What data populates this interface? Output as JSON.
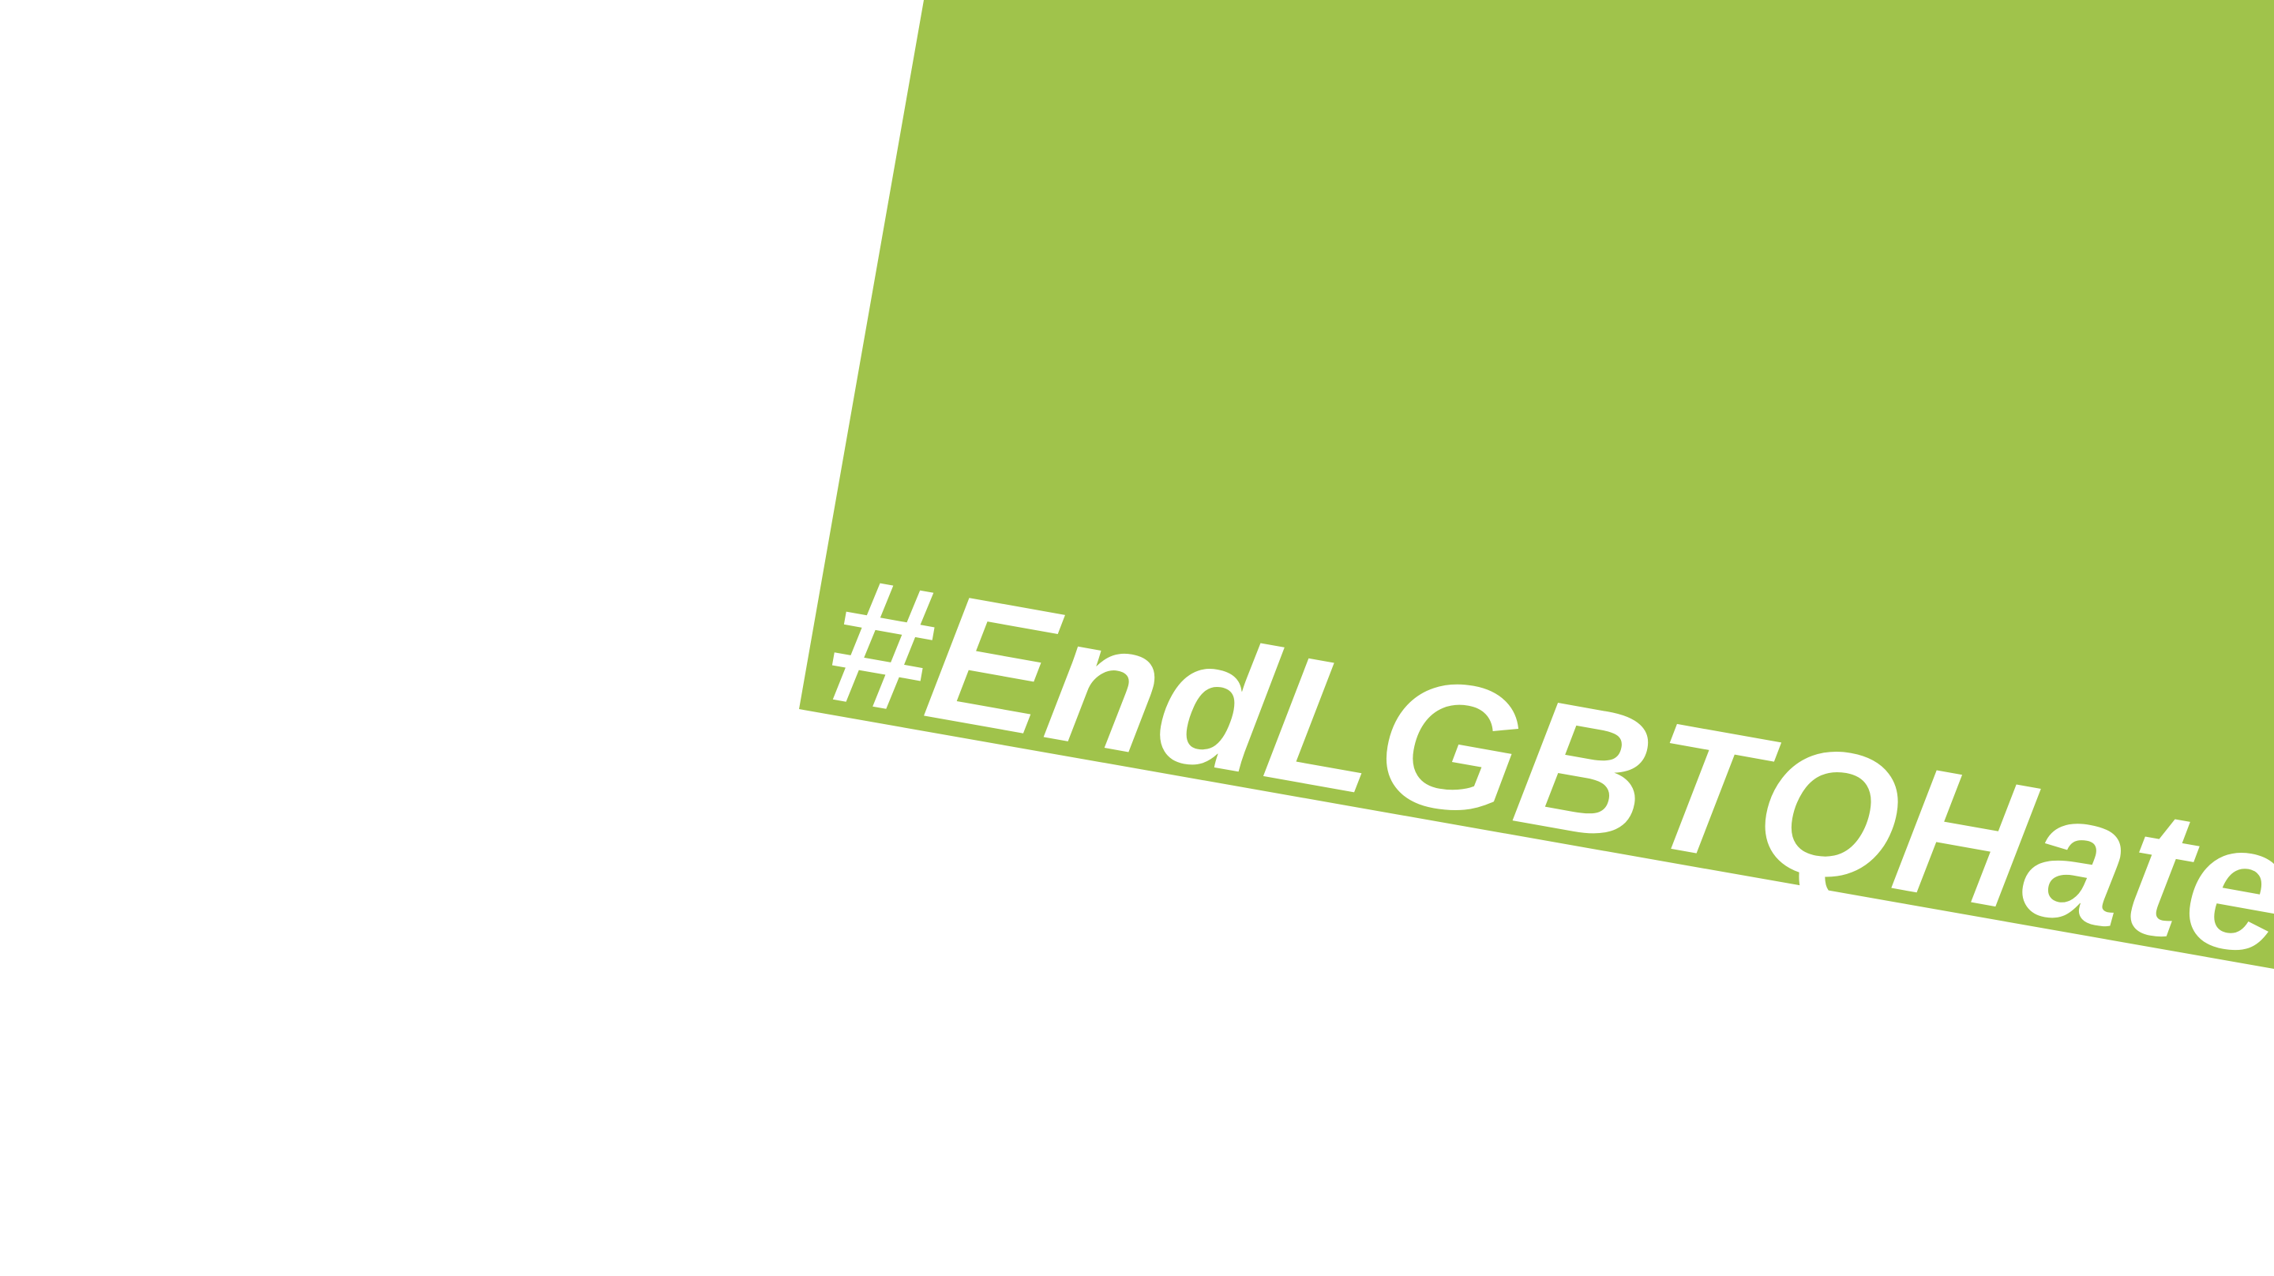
{
  "banner": {
    "color": "#a0c34b",
    "hashtag": "#EndLGBTQHate",
    "text_color": "#ffffff"
  },
  "background": {
    "color": "#ffffff"
  }
}
